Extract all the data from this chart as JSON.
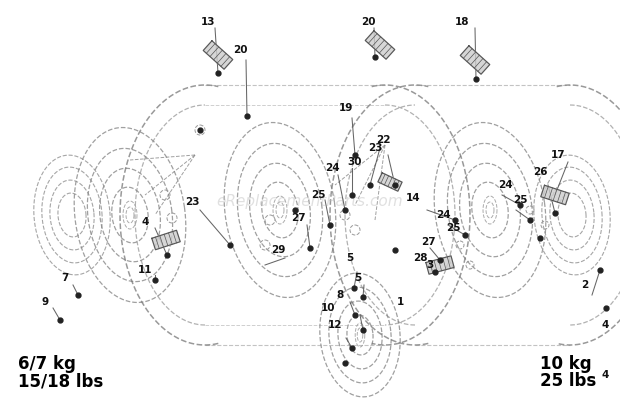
{
  "bg_color": "#ffffff",
  "watermark": "eReplacementParts.com",
  "watermark_color": "#bbbbbb",
  "watermark_alpha": 0.45,
  "left_label_line1": "6/7 kg",
  "left_label_line2": "15/18 lbs",
  "right_label_line1": "10 kg",
  "right_label_line2": "25 lbs",
  "label_fontsize": 12,
  "label_fontweight": "bold",
  "ellipse_color": "#888888",
  "ellipse_lw": 0.9,
  "line_color": "#666666",
  "dot_color": "#222222",
  "text_color": "#111111",
  "part_fontsize": 7.5
}
